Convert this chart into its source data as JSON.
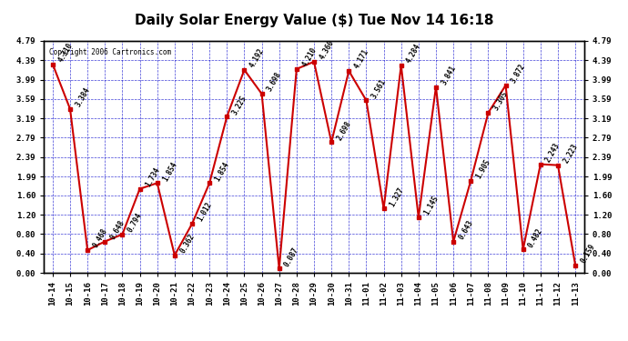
{
  "title": "Daily Solar Energy Value ($) Tue Nov 14 16:18",
  "copyright": "Copyright 2006 Cartronics.com",
  "dates": [
    "10-14",
    "10-15",
    "10-16",
    "10-17",
    "10-18",
    "10-19",
    "10-20",
    "10-21",
    "10-22",
    "10-23",
    "10-24",
    "10-25",
    "10-26",
    "10-27",
    "10-28",
    "10-29",
    "10-30",
    "10-31",
    "11-01",
    "11-02",
    "11-03",
    "11-04",
    "11-05",
    "11-06",
    "11-07",
    "11-08",
    "11-09",
    "11-10",
    "11-11",
    "11-12",
    "11-13"
  ],
  "values": [
    4.31,
    3.384,
    0.468,
    0.648,
    0.794,
    1.734,
    1.854,
    0.362,
    1.012,
    1.854,
    3.225,
    4.192,
    3.698,
    0.087,
    4.21,
    4.36,
    2.698,
    4.171,
    3.561,
    1.327,
    4.284,
    1.145,
    3.841,
    0.643,
    1.905,
    3.305,
    3.872,
    0.482,
    2.243,
    2.223,
    0.159
  ],
  "line_color": "#cc0000",
  "marker_color": "#cc0000",
  "bg_color": "#ffffff",
  "plot_bg_color": "#ffffff",
  "grid_color": "#0000cc",
  "text_color": "#000000",
  "ylim_max": 4.79,
  "yticks": [
    0.0,
    0.4,
    0.8,
    1.2,
    1.6,
    1.99,
    2.39,
    2.79,
    3.19,
    3.59,
    3.99,
    4.39,
    4.79
  ],
  "title_fontsize": 11,
  "annotation_fontsize": 5.5,
  "tick_fontsize": 6.5,
  "copyright_fontsize": 5.5
}
